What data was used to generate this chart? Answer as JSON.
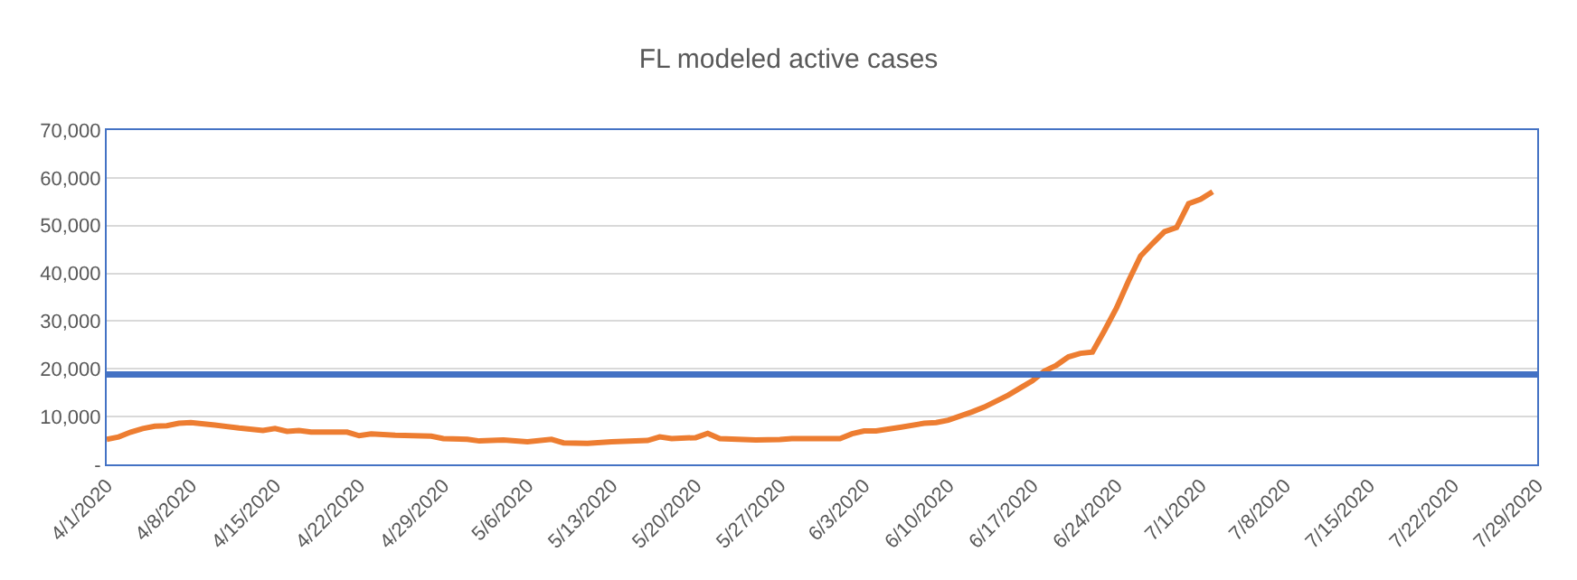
{
  "chart_data": {
    "type": "line",
    "title": "FL modeled active cases",
    "x": [
      "2020-04-01",
      "2020-04-02",
      "2020-04-03",
      "2020-04-04",
      "2020-04-05",
      "2020-04-06",
      "2020-04-07",
      "2020-04-08",
      "2020-04-10",
      "2020-04-12",
      "2020-04-14",
      "2020-04-15",
      "2020-04-16",
      "2020-04-17",
      "2020-04-18",
      "2020-04-21",
      "2020-04-22",
      "2020-04-23",
      "2020-04-25",
      "2020-04-28",
      "2020-04-29",
      "2020-05-01",
      "2020-05-02",
      "2020-05-04",
      "2020-05-06",
      "2020-05-08",
      "2020-05-09",
      "2020-05-11",
      "2020-05-13",
      "2020-05-15",
      "2020-05-16",
      "2020-05-17",
      "2020-05-18",
      "2020-05-20",
      "2020-05-21",
      "2020-05-22",
      "2020-05-25",
      "2020-05-27",
      "2020-05-28",
      "2020-06-01",
      "2020-06-02",
      "2020-06-03",
      "2020-06-04",
      "2020-06-06",
      "2020-06-08",
      "2020-06-09",
      "2020-06-10",
      "2020-06-12",
      "2020-06-13",
      "2020-06-15",
      "2020-06-16",
      "2020-06-17",
      "2020-06-18",
      "2020-06-19",
      "2020-06-20",
      "2020-06-21",
      "2020-06-22",
      "2020-06-23",
      "2020-06-24",
      "2020-06-25",
      "2020-06-26",
      "2020-06-27",
      "2020-06-28",
      "2020-06-29",
      "2020-06-30",
      "2020-07-01",
      "2020-07-02"
    ],
    "series": [
      {
        "color": "#ed7d31",
        "values": [
          5250,
          5750,
          6750,
          7500,
          8000,
          8100,
          8600,
          8750,
          8250,
          7600,
          7100,
          7500,
          6900,
          7100,
          6750,
          6750,
          6000,
          6400,
          6100,
          5900,
          5400,
          5250,
          4900,
          5100,
          4750,
          5250,
          4500,
          4400,
          4750,
          4900,
          5000,
          5750,
          5400,
          5600,
          6500,
          5400,
          5100,
          5200,
          5400,
          5400,
          6400,
          7000,
          7000,
          7750,
          8600,
          8750,
          9250,
          11000,
          12000,
          14500,
          16000,
          17500,
          19500,
          20750,
          22500,
          23250,
          23500,
          28000,
          32750,
          38400,
          43600,
          46250,
          48750,
          49600,
          54600,
          55500,
          57100
        ]
      }
    ],
    "ref_lines": [
      {
        "axis": "y",
        "value": 18800,
        "color": "#4472c4"
      }
    ],
    "xlim": [
      "2020-04-01",
      "2020-07-29"
    ],
    "xticks": [
      {
        "value": "2020-04-01",
        "label": "4/1/2020"
      },
      {
        "value": "2020-04-08",
        "label": "4/8/2020"
      },
      {
        "value": "2020-04-15",
        "label": "4/15/2020"
      },
      {
        "value": "2020-04-22",
        "label": "4/22/2020"
      },
      {
        "value": "2020-04-29",
        "label": "4/29/2020"
      },
      {
        "value": "2020-05-06",
        "label": "5/6/2020"
      },
      {
        "value": "2020-05-13",
        "label": "5/13/2020"
      },
      {
        "value": "2020-05-20",
        "label": "5/20/2020"
      },
      {
        "value": "2020-05-27",
        "label": "5/27/2020"
      },
      {
        "value": "2020-06-03",
        "label": "6/3/2020"
      },
      {
        "value": "2020-06-10",
        "label": "6/10/2020"
      },
      {
        "value": "2020-06-17",
        "label": "6/17/2020"
      },
      {
        "value": "2020-06-24",
        "label": "6/24/2020"
      },
      {
        "value": "2020-07-01",
        "label": "7/1/2020"
      },
      {
        "value": "2020-07-08",
        "label": "7/8/2020"
      },
      {
        "value": "2020-07-15",
        "label": "7/15/2020"
      },
      {
        "value": "2020-07-22",
        "label": "7/22/2020"
      },
      {
        "value": "2020-07-29",
        "label": "7/29/2020"
      }
    ],
    "ylim": [
      0,
      70000
    ],
    "yticks": [
      {
        "value": 0,
        "label": "-"
      },
      {
        "value": 10000,
        "label": "10,000"
      },
      {
        "value": 20000,
        "label": "20,000"
      },
      {
        "value": 30000,
        "label": "30,000"
      },
      {
        "value": 40000,
        "label": "40,000"
      },
      {
        "value": 50000,
        "label": "50,000"
      },
      {
        "value": 60000,
        "label": "60,000"
      },
      {
        "value": 70000,
        "label": "70,000"
      }
    ],
    "grid": "y",
    "marker": "none",
    "line_style": "solid"
  }
}
